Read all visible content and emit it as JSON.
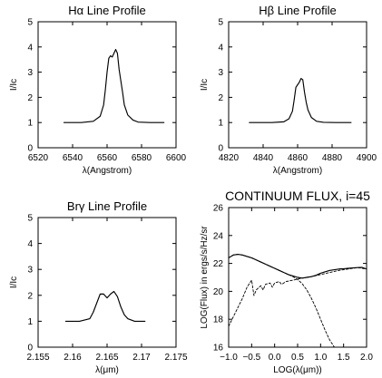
{
  "chart_data": [
    {
      "type": "line",
      "title": "Hα Line Profile",
      "xlabel": "λ(Angstrom)",
      "ylabel": "I/Ic",
      "xlim": [
        6520,
        6600
      ],
      "ylim": [
        0,
        5
      ],
      "xticks": [
        6520,
        6540,
        6560,
        6580,
        6600
      ],
      "yticks": [
        0,
        1,
        2,
        3,
        4,
        5
      ],
      "grid": false,
      "series": [
        {
          "x": [
            6535,
            6545,
            6552,
            6556,
            6558,
            6559,
            6560,
            6561,
            6562,
            6563,
            6564,
            6565,
            6566,
            6567,
            6569,
            6570,
            6572,
            6575,
            6578,
            6585,
            6593
          ],
          "y": [
            1.0,
            1.0,
            1.05,
            1.25,
            1.7,
            2.3,
            3.0,
            3.55,
            3.65,
            3.6,
            3.75,
            3.9,
            3.75,
            3.1,
            2.2,
            1.7,
            1.3,
            1.1,
            1.02,
            1.0,
            1.0
          ]
        }
      ]
    },
    {
      "type": "line",
      "title": "Hβ Line Profile",
      "xlabel": "λ(Angstrom)",
      "ylabel": "I/Ic",
      "xlim": [
        4820,
        4900
      ],
      "ylim": [
        0,
        5
      ],
      "xticks": [
        4820,
        4840,
        4860,
        4880,
        4900
      ],
      "yticks": [
        0,
        1,
        2,
        3,
        4,
        5
      ],
      "grid": false,
      "series": [
        {
          "x": [
            4832,
            4845,
            4852,
            4855,
            4857,
            4858,
            4859,
            4860,
            4861,
            4862,
            4863,
            4864,
            4865,
            4866,
            4868,
            4871,
            4875,
            4882,
            4891
          ],
          "y": [
            1.0,
            1.0,
            1.03,
            1.15,
            1.45,
            1.9,
            2.4,
            2.5,
            2.6,
            2.75,
            2.7,
            2.2,
            1.8,
            1.5,
            1.2,
            1.05,
            1.01,
            1.0,
            1.0
          ]
        }
      ]
    },
    {
      "type": "line",
      "title": "Brγ Line Profile",
      "xlabel": "λ(μm)",
      "ylabel": "I/Ic",
      "xlim": [
        2.155,
        2.175
      ],
      "ylim": [
        0,
        5
      ],
      "xticks": [
        2.155,
        2.16,
        2.165,
        2.17,
        2.175
      ],
      "yticks": [
        0,
        1,
        2,
        3,
        4,
        5
      ],
      "grid": false,
      "series": [
        {
          "x": [
            2.159,
            2.161,
            2.1625,
            2.163,
            2.1635,
            2.164,
            2.1645,
            2.165,
            2.1655,
            2.166,
            2.1665,
            2.167,
            2.1675,
            2.168,
            2.169,
            2.1705
          ],
          "y": [
            1.0,
            1.0,
            1.1,
            1.35,
            1.7,
            2.05,
            2.05,
            1.9,
            2.05,
            2.15,
            1.95,
            1.55,
            1.25,
            1.1,
            1.0,
            1.0
          ]
        }
      ]
    },
    {
      "type": "line",
      "title": "CONTINUUM FLUX, i=45",
      "xlabel": "LOG(λ(μm))",
      "ylabel": "LOG(Flux) in ergs/s/Hz/sr",
      "xlim": [
        -1.0,
        2.0
      ],
      "ylim": [
        16,
        26
      ],
      "xticks": [
        -1.0,
        -0.5,
        0.0,
        0.5,
        1.0,
        1.5,
        2.0
      ],
      "xticklabels": [
        "−1.0",
        "−0.5",
        "0.0",
        "0.5",
        "1.0",
        "1.5",
        "2.0"
      ],
      "yticks": [
        16,
        18,
        20,
        22,
        24,
        26
      ],
      "grid": false,
      "series": [
        {
          "style": "solid",
          "x": [
            -1.0,
            -0.9,
            -0.8,
            -0.7,
            -0.6,
            -0.5,
            -0.4,
            -0.3,
            -0.2,
            -0.1,
            0.0,
            0.1,
            0.2,
            0.3,
            0.4,
            0.5,
            0.6,
            0.7,
            0.8,
            0.9,
            1.0,
            1.1,
            1.2,
            1.3,
            1.4,
            1.5,
            1.6,
            1.7,
            1.8,
            1.9,
            2.0
          ],
          "y": [
            22.4,
            22.6,
            22.65,
            22.6,
            22.5,
            22.4,
            22.25,
            22.1,
            21.95,
            21.8,
            21.65,
            21.5,
            21.35,
            21.2,
            21.1,
            21.0,
            20.95,
            21.0,
            21.05,
            21.15,
            21.3,
            21.4,
            21.5,
            21.55,
            21.6,
            21.62,
            21.65,
            21.68,
            21.7,
            21.72,
            21.6
          ]
        },
        {
          "style": "dashed",
          "x": [
            -1.0,
            -0.9,
            -0.8,
            -0.7,
            -0.6,
            -0.5,
            -0.4,
            -0.3,
            -0.2,
            -0.1,
            0.0,
            0.1,
            0.2,
            0.3,
            0.4,
            0.5,
            0.6,
            0.7,
            0.8,
            0.9,
            1.0,
            1.1,
            1.2,
            1.3
          ],
          "y": [
            22.4,
            22.6,
            22.65,
            22.6,
            22.5,
            22.4,
            22.25,
            22.1,
            21.95,
            21.8,
            21.65,
            21.5,
            21.35,
            21.2,
            21.05,
            20.85,
            20.55,
            20.1,
            19.5,
            18.8,
            18.0,
            17.2,
            16.5,
            16.0
          ]
        },
        {
          "style": "dashed",
          "x": [
            -1.0,
            -0.85,
            -0.7,
            -0.6,
            -0.5,
            -0.45,
            -0.4,
            -0.3,
            -0.25,
            -0.2,
            -0.1,
            -0.05,
            0.0,
            0.1,
            0.15,
            0.25,
            0.4,
            0.6,
            0.8,
            1.0,
            1.2,
            1.4,
            1.6,
            1.8,
            2.0
          ],
          "y": [
            17.5,
            18.5,
            19.5,
            20.3,
            20.8,
            19.7,
            20.1,
            20.4,
            20.1,
            20.5,
            20.6,
            20.3,
            20.6,
            20.7,
            20.5,
            20.7,
            20.8,
            20.95,
            21.05,
            21.2,
            21.35,
            21.5,
            21.6,
            21.7,
            21.6
          ]
        }
      ]
    }
  ]
}
